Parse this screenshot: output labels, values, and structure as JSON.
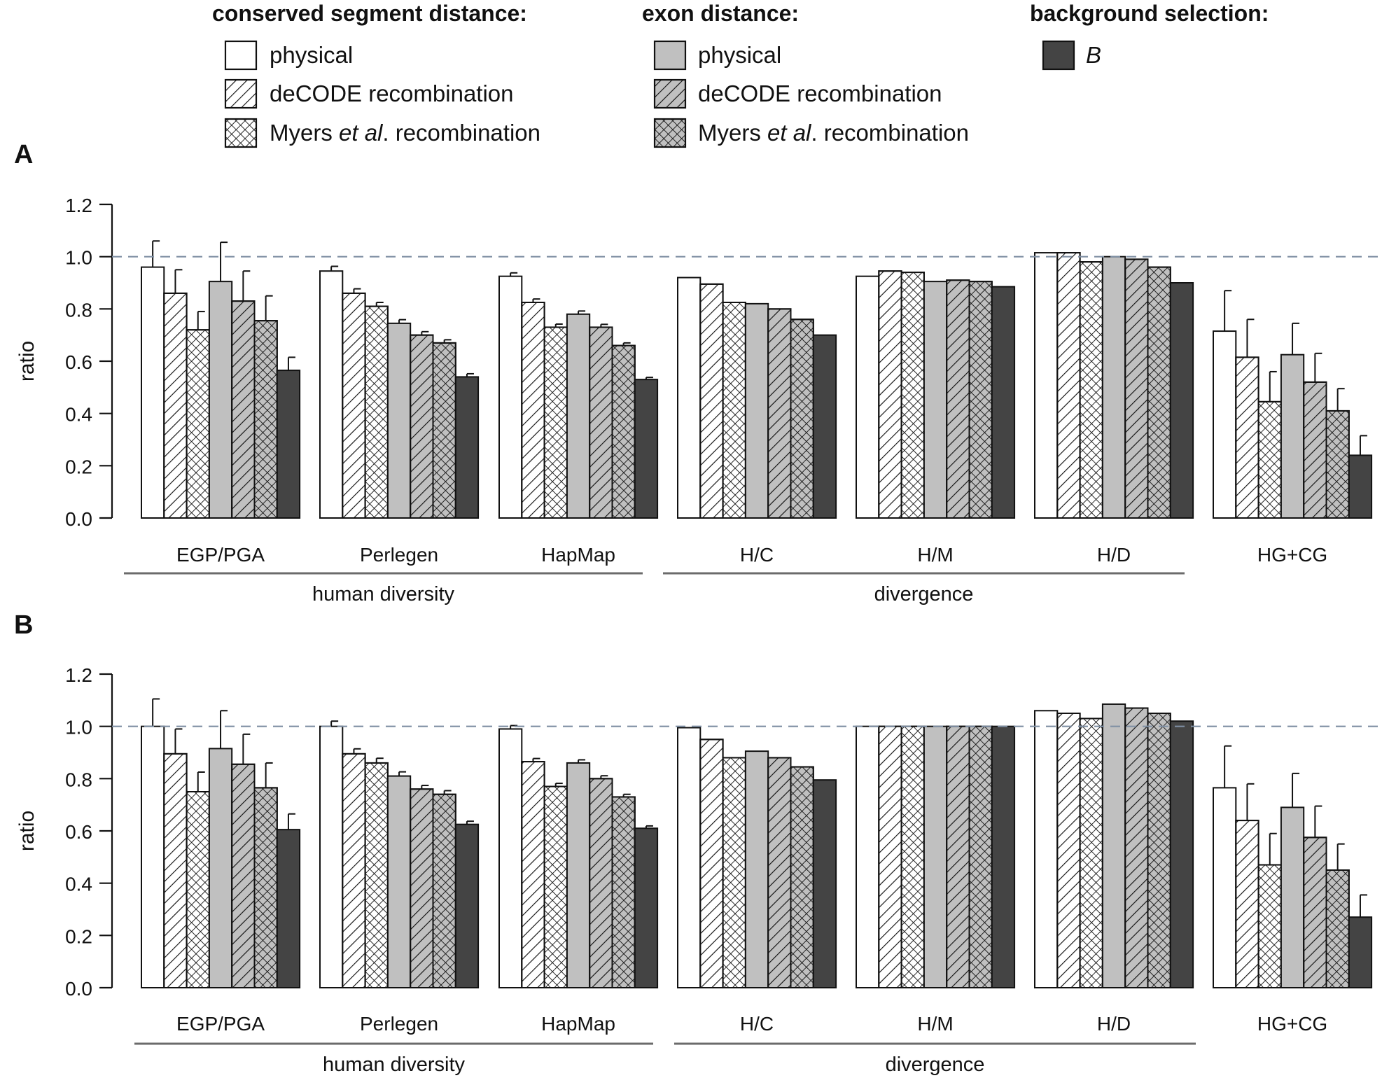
{
  "legend": {
    "groups": [
      {
        "heading": "conserved segment distance:",
        "items": [
          {
            "key": "cs_phys",
            "label": "physical",
            "label_pre": "",
            "label_italic": "",
            "label_post": ""
          },
          {
            "key": "cs_decode",
            "label": "deCODE recombination",
            "label_pre": "",
            "label_italic": "",
            "label_post": ""
          },
          {
            "key": "cs_myers",
            "label": "Myers et al. recombination",
            "label_pre": "Myers ",
            "label_italic": "et al",
            "label_post": ". recombination"
          }
        ]
      },
      {
        "heading": "exon distance:",
        "items": [
          {
            "key": "ex_phys",
            "label": "physical",
            "label_pre": "",
            "label_italic": "",
            "label_post": ""
          },
          {
            "key": "ex_decode",
            "label": "deCODE recombination",
            "label_pre": "",
            "label_italic": "",
            "label_post": ""
          },
          {
            "key": "ex_myers",
            "label": "Myers et al. recombination",
            "label_pre": "Myers ",
            "label_italic": "et al",
            "label_post": ". recombination"
          }
        ]
      },
      {
        "heading": "background selection:",
        "items": [
          {
            "key": "bs",
            "label": "B",
            "label_pre": "",
            "label_italic": "B",
            "label_post": ""
          }
        ]
      }
    ]
  },
  "colors": {
    "white": "#ffffff",
    "light_gray": "#c0c0c0",
    "dark": "#444444",
    "stroke": "#111111",
    "reference_line": "#7f8fa3",
    "group_line": "#6b6b6b"
  },
  "series_styles": [
    {
      "key": "cs_phys",
      "fill": "white",
      "pattern": "none"
    },
    {
      "key": "cs_decode",
      "fill": "white",
      "pattern": "hatch"
    },
    {
      "key": "cs_myers",
      "fill": "white",
      "pattern": "cross"
    },
    {
      "key": "ex_phys",
      "fill": "light_gray",
      "pattern": "none"
    },
    {
      "key": "ex_decode",
      "fill": "light_gray",
      "pattern": "hatch"
    },
    {
      "key": "ex_myers",
      "fill": "light_gray",
      "pattern": "cross"
    },
    {
      "key": "bs",
      "fill": "dark",
      "pattern": "none"
    }
  ],
  "chart_data": [
    {
      "panel_label": "A",
      "type": "bar",
      "ylabel": "ratio",
      "ylim": [
        0,
        1.2
      ],
      "yticks": [
        "0.0",
        "0.2",
        "0.4",
        "0.6",
        "0.8",
        "1.0",
        "1.2"
      ],
      "reference_line": 1.0,
      "categories": [
        "EGP/PGA",
        "Perlegen",
        "HapMap",
        "H/C",
        "H/M",
        "H/D",
        "HG+CG"
      ],
      "category_groups": [
        {
          "label": "human diversity",
          "categories": [
            "EGP/PGA",
            "Perlegen",
            "HapMap"
          ]
        },
        {
          "label": "divergence",
          "categories": [
            "H/C",
            "H/M",
            "H/D"
          ]
        }
      ],
      "series": [
        {
          "name": "conserved segment distance: physical",
          "values": [
            0.96,
            0.945,
            0.925,
            0.92,
            0.925,
            1.015,
            0.715
          ],
          "errors": [
            0.1,
            0.018,
            0.013,
            0.004,
            0.003,
            0.003,
            0.155
          ]
        },
        {
          "name": "conserved segment distance: deCODE recombination",
          "values": [
            0.86,
            0.86,
            0.825,
            0.895,
            0.945,
            1.015,
            0.615
          ],
          "errors": [
            0.09,
            0.017,
            0.013,
            0.004,
            0.003,
            0.003,
            0.145
          ]
        },
        {
          "name": "conserved segment distance: Myers et al. recombination",
          "values": [
            0.72,
            0.81,
            0.73,
            0.825,
            0.94,
            0.98,
            0.445
          ],
          "errors": [
            0.07,
            0.015,
            0.012,
            0.004,
            0.003,
            0.003,
            0.115
          ]
        },
        {
          "name": "exon distance: physical",
          "values": [
            0.905,
            0.745,
            0.78,
            0.82,
            0.905,
            1.0,
            0.625
          ],
          "errors": [
            0.15,
            0.014,
            0.012,
            0.003,
            0.003,
            0.003,
            0.12
          ]
        },
        {
          "name": "exon distance: deCODE recombination",
          "values": [
            0.83,
            0.7,
            0.73,
            0.8,
            0.91,
            0.99,
            0.52
          ],
          "errors": [
            0.115,
            0.013,
            0.011,
            0.003,
            0.003,
            0.003,
            0.11
          ]
        },
        {
          "name": "exon distance: Myers et al. recombination",
          "values": [
            0.755,
            0.67,
            0.66,
            0.76,
            0.905,
            0.96,
            0.41
          ],
          "errors": [
            0.095,
            0.012,
            0.01,
            0.003,
            0.003,
            0.003,
            0.085
          ]
        },
        {
          "name": "background selection: B",
          "values": [
            0.565,
            0.54,
            0.53,
            0.7,
            0.885,
            0.9,
            0.24
          ],
          "errors": [
            0.05,
            0.012,
            0.008,
            0.002,
            0.002,
            0.002,
            0.075
          ]
        }
      ]
    },
    {
      "panel_label": "B",
      "type": "bar",
      "ylabel": "ratio",
      "ylim": [
        0,
        1.2
      ],
      "yticks": [
        "0.0",
        "0.2",
        "0.4",
        "0.6",
        "0.8",
        "1.0",
        "1.2"
      ],
      "reference_line": 1.0,
      "categories": [
        "EGP/PGA",
        "Perlegen",
        "HapMap",
        "H/C",
        "H/M",
        "H/D",
        "HG+CG"
      ],
      "category_groups": [
        {
          "label": "human diversity",
          "categories": [
            "EGP/PGA",
            "Perlegen",
            "HapMap"
          ]
        },
        {
          "label": "divergence",
          "categories": [
            "H/C",
            "H/M",
            "H/D"
          ]
        }
      ],
      "series": [
        {
          "name": "conserved segment distance: physical",
          "values": [
            1.0,
            1.0,
            0.99,
            0.995,
            1.0,
            1.06,
            0.765
          ],
          "errors": [
            0.105,
            0.02,
            0.013,
            0.004,
            0.001,
            0.003,
            0.16
          ]
        },
        {
          "name": "conserved segment distance: deCODE recombination",
          "values": [
            0.895,
            0.895,
            0.865,
            0.95,
            1.0,
            1.05,
            0.64
          ],
          "errors": [
            0.095,
            0.019,
            0.012,
            0.004,
            0.001,
            0.003,
            0.14
          ]
        },
        {
          "name": "conserved segment distance: Myers et al. recombination",
          "values": [
            0.75,
            0.86,
            0.77,
            0.88,
            1.0,
            1.03,
            0.47
          ],
          "errors": [
            0.075,
            0.018,
            0.012,
            0.004,
            0.001,
            0.003,
            0.12
          ]
        },
        {
          "name": "exon distance: physical",
          "values": [
            0.915,
            0.81,
            0.86,
            0.905,
            1.0,
            1.085,
            0.69
          ],
          "errors": [
            0.145,
            0.016,
            0.012,
            0.004,
            0.001,
            0.003,
            0.13
          ]
        },
        {
          "name": "exon distance: deCODE recombination",
          "values": [
            0.855,
            0.76,
            0.8,
            0.88,
            1.0,
            1.07,
            0.575
          ],
          "errors": [
            0.115,
            0.014,
            0.011,
            0.004,
            0.001,
            0.003,
            0.12
          ]
        },
        {
          "name": "exon distance: Myers et al. recombination",
          "values": [
            0.765,
            0.74,
            0.73,
            0.845,
            1.0,
            1.05,
            0.45
          ],
          "errors": [
            0.095,
            0.014,
            0.01,
            0.003,
            0.001,
            0.003,
            0.1
          ]
        },
        {
          "name": "background selection: B",
          "values": [
            0.605,
            0.625,
            0.61,
            0.795,
            1.0,
            1.02,
            0.27
          ],
          "errors": [
            0.06,
            0.012,
            0.009,
            0.002,
            0.001,
            0.003,
            0.085
          ]
        }
      ]
    }
  ]
}
